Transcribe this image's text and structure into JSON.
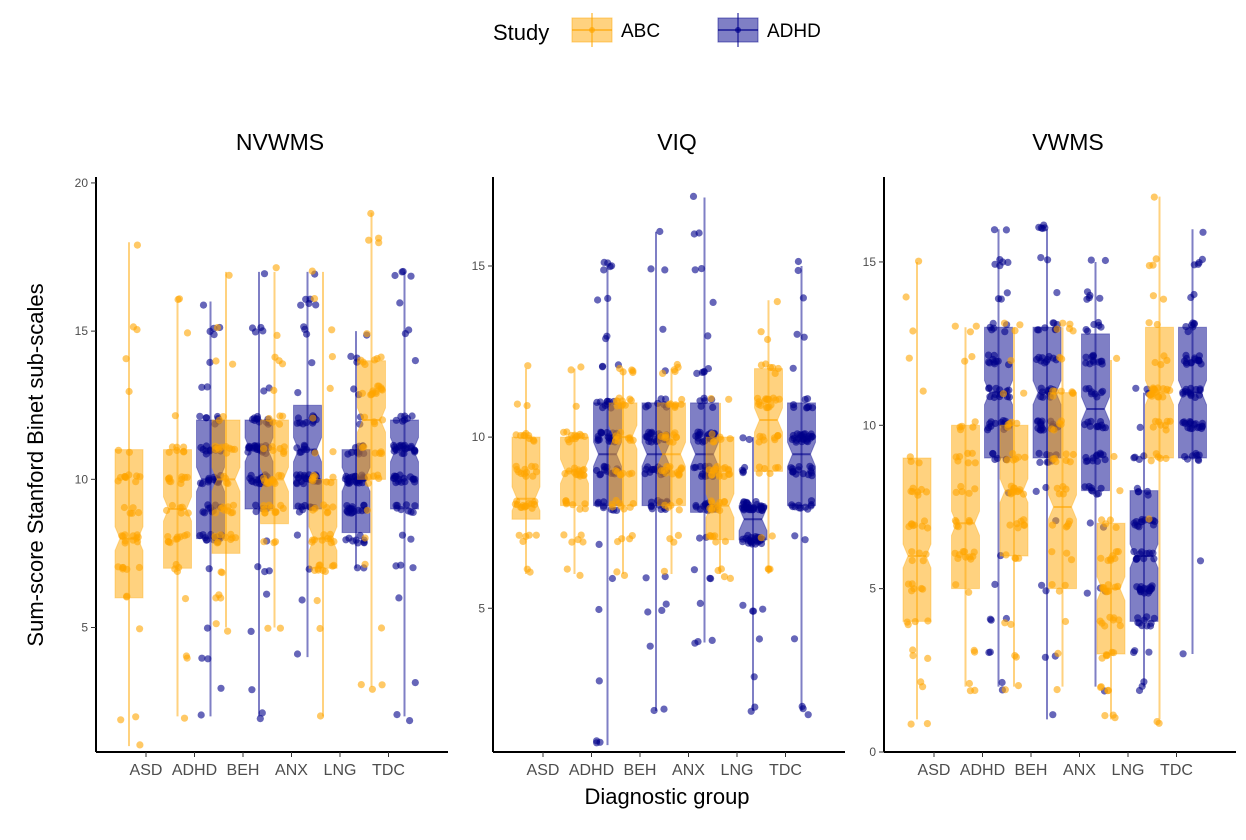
{
  "chart_data": {
    "type": "box",
    "legend": {
      "title": "Study",
      "position": "top",
      "entries": [
        {
          "name": "ABC",
          "color": "#FFA500"
        },
        {
          "name": "ADHD",
          "color": "#00008B"
        }
      ]
    },
    "xlabel": "Diagnostic group",
    "ylabel": "Sum-score Stanford Binet sub-scales",
    "categories": [
      "ASD",
      "ADHD",
      "BEH",
      "ANX",
      "LNG",
      "TDC"
    ],
    "grid": false,
    "panels": [
      {
        "title": "NVWMS",
        "ylim": [
          0.8,
          20.2
        ],
        "yticks": [
          5,
          10,
          15,
          20
        ],
        "boxes": [
          {
            "category": "ASD",
            "series": "ABC",
            "min": 1,
            "q1": 6,
            "median": 8,
            "q3": 11,
            "max": 18
          },
          {
            "category": "ADHD",
            "series": "ABC",
            "min": 2,
            "q1": 7,
            "median": 9,
            "q3": 11,
            "max": 16
          },
          {
            "category": "ADHD",
            "series": "ADHD",
            "min": 2,
            "q1": 8,
            "median": 10,
            "q3": 12,
            "max": 16
          },
          {
            "category": "BEH",
            "series": "ABC",
            "min": 5,
            "q1": 7.5,
            "median": 10,
            "q3": 12,
            "max": 17
          },
          {
            "category": "BEH",
            "series": "ADHD",
            "min": 2,
            "q1": 9,
            "median": 11,
            "q3": 12,
            "max": 17
          },
          {
            "category": "ANX",
            "series": "ABC",
            "min": 5,
            "q1": 8.5,
            "median": 10,
            "q3": 12,
            "max": 17
          },
          {
            "category": "ANX",
            "series": "ADHD",
            "min": 4,
            "q1": 9,
            "median": 11,
            "q3": 12.5,
            "max": 17
          },
          {
            "category": "LNG",
            "series": "ABC",
            "min": 2,
            "q1": 7,
            "median": 8,
            "q3": 10,
            "max": 17
          },
          {
            "category": "LNG",
            "series": "ADHD",
            "min": 7,
            "q1": 8.2,
            "median": 10,
            "q3": 11,
            "max": 15
          },
          {
            "category": "TDC",
            "series": "ABC",
            "min": 3,
            "q1": 10,
            "median": 12,
            "q3": 14,
            "max": 19
          },
          {
            "category": "TDC",
            "series": "ADHD",
            "min": 2,
            "q1": 9,
            "median": 11,
            "q3": 12,
            "max": 17
          }
        ]
      },
      {
        "title": "VIQ",
        "ylim": [
          0.8,
          17.6
        ],
        "yticks": [
          5,
          10,
          15
        ],
        "boxes": [
          {
            "category": "ASD",
            "series": "ABC",
            "min": 6,
            "q1": 7.6,
            "median": 8.2,
            "q3": 10,
            "max": 12
          },
          {
            "category": "ADHD",
            "series": "ABC",
            "min": 6,
            "q1": 8,
            "median": 9,
            "q3": 10,
            "max": 12
          },
          {
            "category": "ADHD",
            "series": "ADHD",
            "min": 1,
            "q1": 8,
            "median": 9.5,
            "q3": 11,
            "max": 15
          },
          {
            "category": "BEH",
            "series": "ABC",
            "min": 6,
            "q1": 8,
            "median": 10,
            "q3": 11,
            "max": 12
          },
          {
            "category": "BEH",
            "series": "ADHD",
            "min": 2,
            "q1": 8,
            "median": 9.5,
            "q3": 11,
            "max": 16
          },
          {
            "category": "ANX",
            "series": "ABC",
            "min": 6,
            "q1": 8,
            "median": 9.5,
            "q3": 11,
            "max": 12
          },
          {
            "category": "ANX",
            "series": "ADHD",
            "min": 4,
            "q1": 7.8,
            "median": 9.5,
            "q3": 11,
            "max": 17
          },
          {
            "category": "LNG",
            "series": "ABC",
            "min": 6,
            "q1": 7,
            "median": 8,
            "q3": 10,
            "max": 11
          },
          {
            "category": "LNG",
            "series": "ADHD",
            "min": 2,
            "q1": 7,
            "median": 7.6,
            "q3": 8,
            "max": 10
          },
          {
            "category": "TDC",
            "series": "ABC",
            "min": 6,
            "q1": 9,
            "median": 10.5,
            "q3": 12,
            "max": 14
          },
          {
            "category": "TDC",
            "series": "ADHD",
            "min": 2,
            "q1": 8,
            "median": 9.5,
            "q3": 11,
            "max": 15
          }
        ]
      },
      {
        "title": "VWMS",
        "ylim": [
          0,
          17.6
        ],
        "yticks": [
          0,
          5,
          10,
          15
        ],
        "boxes": [
          {
            "category": "ASD",
            "series": "ABC",
            "min": 1,
            "q1": 4,
            "median": 6,
            "q3": 9,
            "max": 15
          },
          {
            "category": "ADHD",
            "series": "ABC",
            "min": 2,
            "q1": 5,
            "median": 7,
            "q3": 10,
            "max": 13
          },
          {
            "category": "ADHD",
            "series": "ADHD",
            "min": 2,
            "q1": 9,
            "median": 11,
            "q3": 13,
            "max": 16
          },
          {
            "category": "BEH",
            "series": "ABC",
            "min": 2,
            "q1": 6,
            "median": 8,
            "q3": 10,
            "max": 13
          },
          {
            "category": "BEH",
            "series": "ADHD",
            "min": 1,
            "q1": 9,
            "median": 11,
            "q3": 13,
            "max": 16
          },
          {
            "category": "ANX",
            "series": "ABC",
            "min": 2,
            "q1": 5,
            "median": 7.5,
            "q3": 11,
            "max": 13
          },
          {
            "category": "ANX",
            "series": "ADHD",
            "min": 2,
            "q1": 8,
            "median": 10.5,
            "q3": 12.8,
            "max": 15
          },
          {
            "category": "LNG",
            "series": "ABC",
            "min": 1,
            "q1": 3,
            "median": 5,
            "q3": 7,
            "max": 12
          },
          {
            "category": "LNG",
            "series": "ADHD",
            "min": 2,
            "q1": 4,
            "median": 6,
            "q3": 8,
            "max": 11
          },
          {
            "category": "TDC",
            "series": "ABC",
            "min": 1,
            "q1": 9,
            "median": 11,
            "q3": 13,
            "max": 17
          },
          {
            "category": "TDC",
            "series": "ADHD",
            "min": 3,
            "q1": 9,
            "median": 11,
            "q3": 13,
            "max": 16
          }
        ]
      }
    ]
  }
}
